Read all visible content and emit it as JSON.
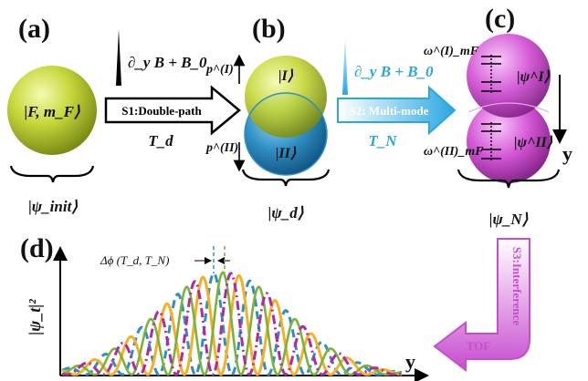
{
  "panels": {
    "a": {
      "label": "(a)",
      "state": "|F, m_F⟩",
      "caption": "|ψ_init⟩"
    },
    "b": {
      "label": "(b)",
      "upper_state": "|I⟩",
      "lower_state": "|II⟩",
      "p_up": "p^(I)",
      "p_down": "p^(II)",
      "caption": "|ψ_d⟩"
    },
    "c": {
      "label": "(c)",
      "upper_state": "|ψ^I⟩",
      "lower_state": "|ψ^II⟩",
      "omega_up": "ω^(I)_mF",
      "omega_down": "ω^(II)_mF",
      "axis": "y",
      "caption": "|ψ_N⟩"
    },
    "d": {
      "label": "(d)",
      "ylabel": "|ψ_t|²",
      "xlabel": "y",
      "annotation": "Δϕ (T_d, T_N)"
    }
  },
  "steps": {
    "s1": {
      "field": "∂_y B + B_0",
      "label": "S1:Double-path",
      "time": "T_d"
    },
    "s2": {
      "field": "∂_y B + B_0",
      "label": "S2: Multi-mode",
      "time": "T_N"
    },
    "s3": {
      "label": "S3:Interference",
      "tof": "TOF"
    }
  },
  "colors": {
    "green_ball": "#b5c92a",
    "blue_ball": "#2f8fc4",
    "magenta_ball": "#d455d6",
    "s2_blue": "#2aa7e0",
    "s3_magenta": "#c74ccf",
    "curve_blue": "#2f8fc4",
    "curve_green": "#7bb33a",
    "curve_orange": "#f5b025",
    "curve_magenta": "#b02aa6"
  },
  "chart_data": {
    "type": "line",
    "series": [
      {
        "style": "dashed",
        "color": "blue"
      },
      {
        "style": "solid",
        "color": "green"
      },
      {
        "style": "solid",
        "color": "orange"
      },
      {
        "style": "dash-dot",
        "color": "magenta"
      }
    ]
  }
}
